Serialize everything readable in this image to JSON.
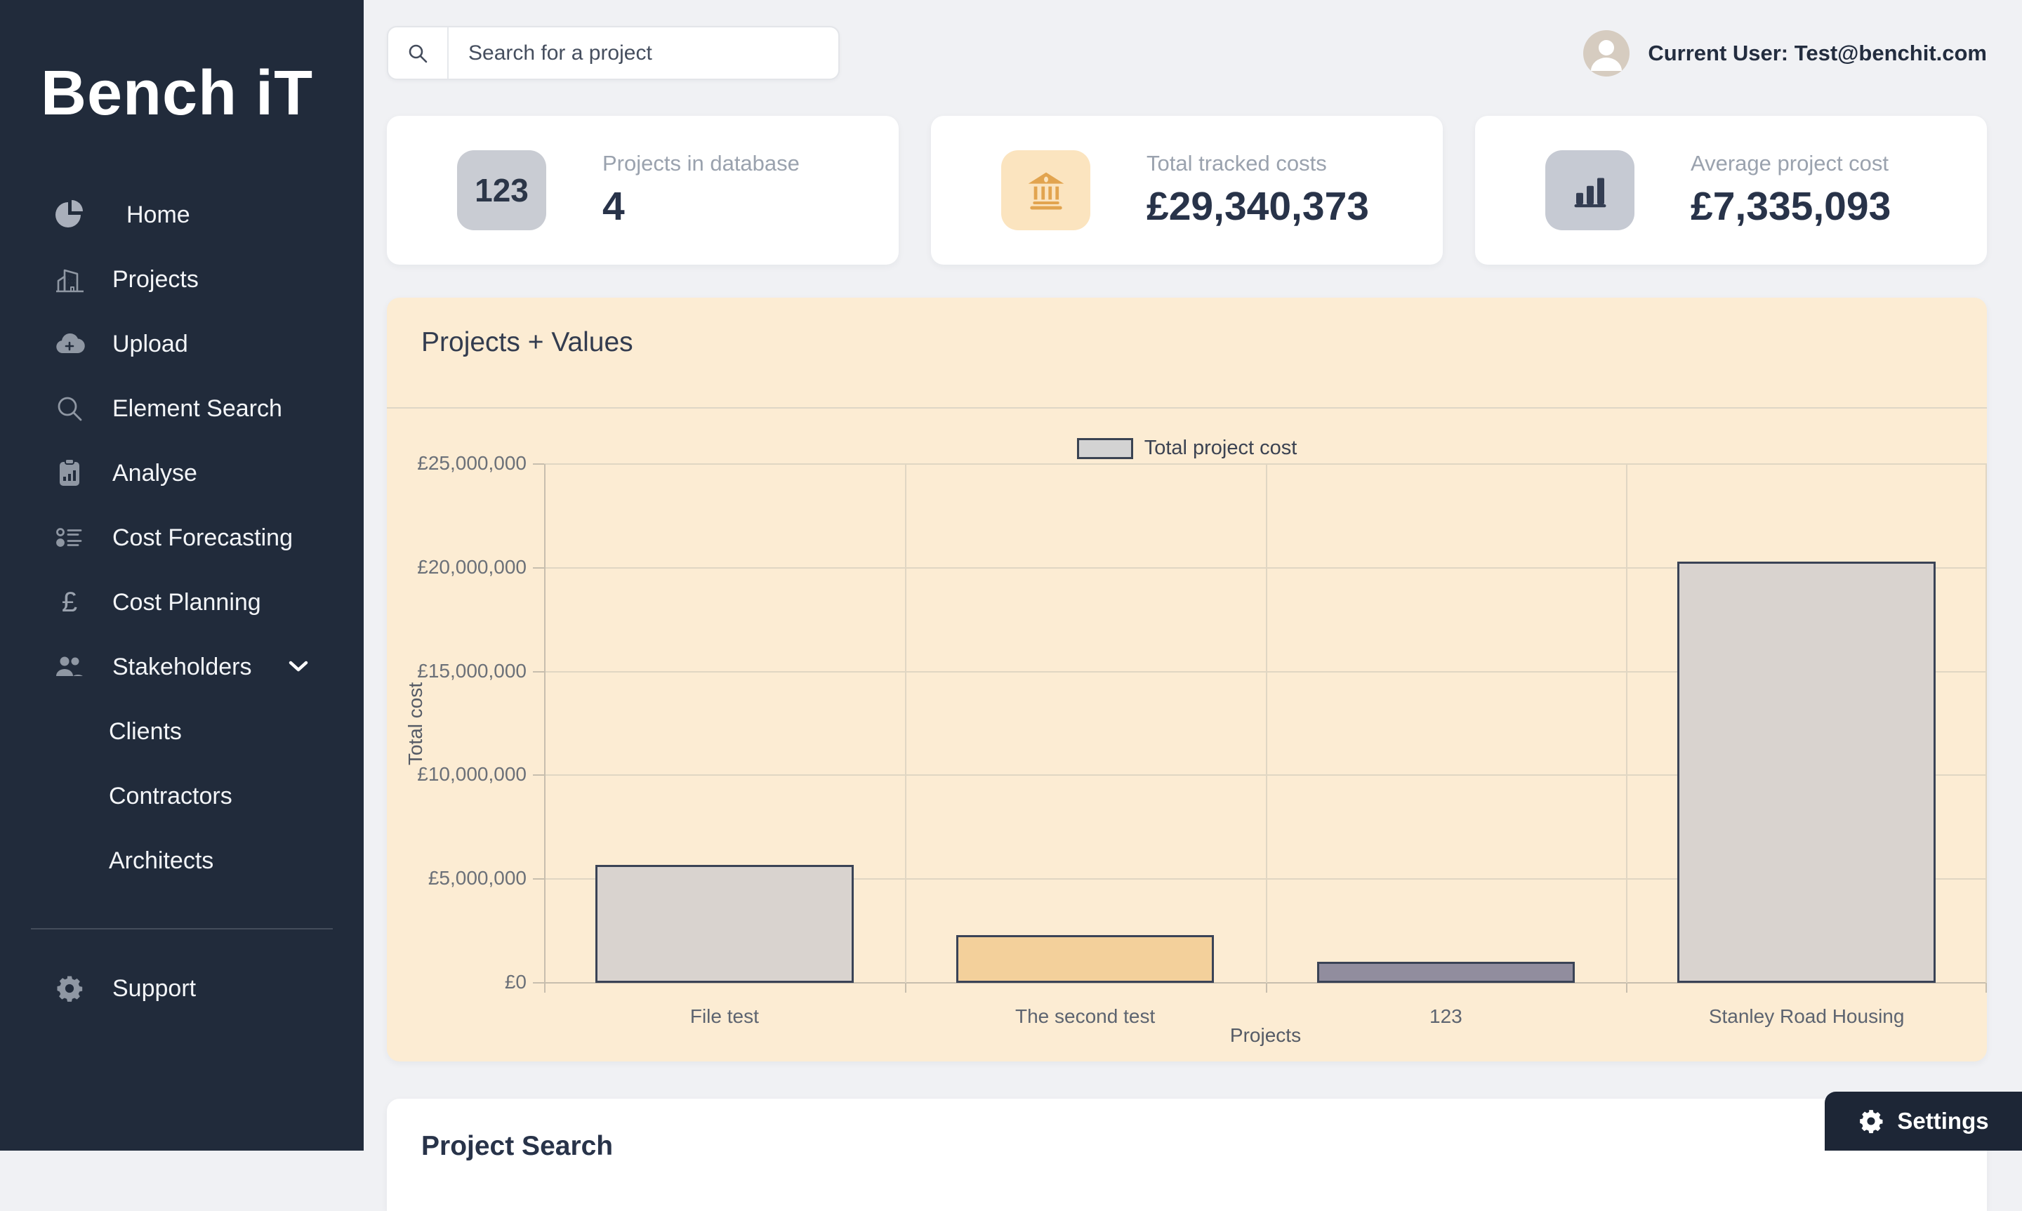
{
  "sidebar": {
    "logo": "Bench iT",
    "items": [
      {
        "label": "Home",
        "icon": "pie-chart-icon"
      },
      {
        "label": "Projects",
        "icon": "building-icon"
      },
      {
        "label": "Upload",
        "icon": "cloud-upload-icon"
      },
      {
        "label": "Element Search",
        "icon": "search-icon"
      },
      {
        "label": "Analyse",
        "icon": "clipboard-chart-icon"
      },
      {
        "label": "Cost Forecasting",
        "icon": "checklist-icon"
      },
      {
        "label": "Cost Planning",
        "icon": "pound-icon"
      },
      {
        "label": "Stakeholders",
        "icon": "people-icon"
      }
    ],
    "stakeholder_subitems": [
      {
        "label": "Clients"
      },
      {
        "label": "Contractors"
      },
      {
        "label": "Architects"
      }
    ],
    "support_label": "Support"
  },
  "topbar": {
    "search_placeholder": "Search for a project",
    "user_label": "Current User: Test@benchit.com"
  },
  "stats": [
    {
      "label": "Projects in database",
      "value": "4",
      "icon": "123-badge"
    },
    {
      "label": "Total tracked costs",
      "value": "£29,340,373",
      "icon": "bank-icon"
    },
    {
      "label": "Average project cost",
      "value": "£7,335,093",
      "icon": "bar-chart-icon"
    }
  ],
  "chart_card": {
    "title": "Projects + Values"
  },
  "chart_data": {
    "type": "bar",
    "title": "Projects + Values",
    "categories": [
      "File test",
      "The second test",
      "123",
      "Stanley Road Housing"
    ],
    "values": [
      5700000,
      2300000,
      1000000,
      20300000
    ],
    "series_name": "Total project cost",
    "xlabel": "Projects",
    "ylabel": "Total cost",
    "ylim": [
      0,
      25000000
    ],
    "ytick_step": 5000000,
    "ytick_labels": [
      "£0",
      "£5,000,000",
      "£10,000,000",
      "£15,000,000",
      "£20,000,000",
      "£25,000,000"
    ],
    "bar_colors": [
      "#d9d3cf",
      "#f3d09b",
      "#918d9e",
      "#d9d3cf"
    ],
    "bar_border": "#3a4356",
    "legend_position": "top-center",
    "grid": true
  },
  "bottom_card": {
    "title": "Project Search"
  },
  "settings": {
    "label": "Settings"
  },
  "colors": {
    "sidebar_bg": "#212b3b",
    "main_bg": "#f0f1f4",
    "chart_bg": "#fcecd3",
    "accent_orange": "#e2a44f",
    "dark_navy": "#283349"
  }
}
